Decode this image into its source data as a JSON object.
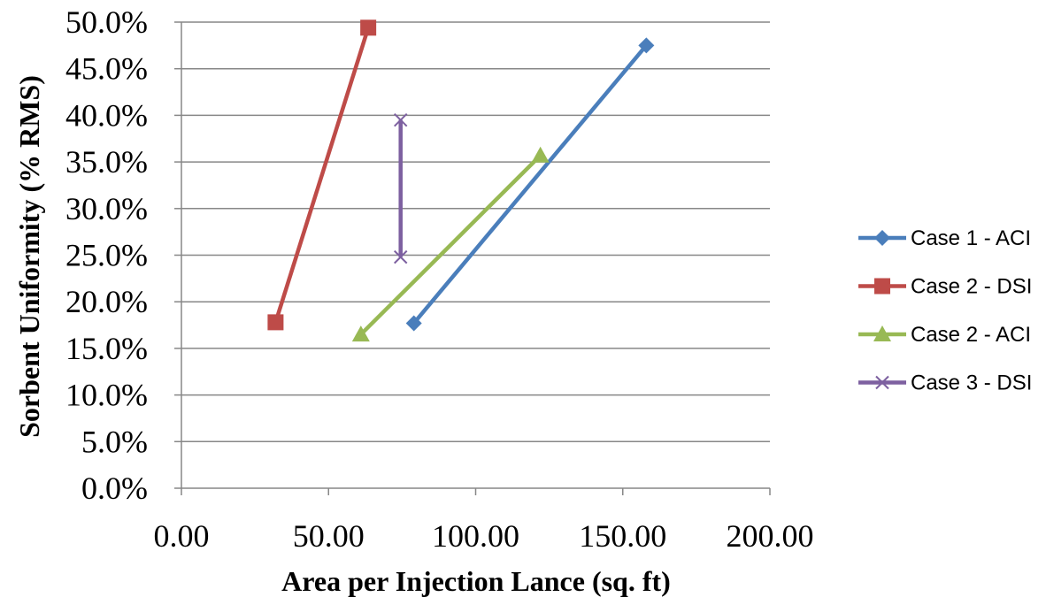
{
  "chart_data": {
    "type": "scatter",
    "xlabel": "Area per Injection Lance (sq. ft)",
    "ylabel": "Sorbent Uniformity (% RMS)",
    "xlim": [
      0,
      200
    ],
    "ylim": [
      0,
      50
    ],
    "x_ticks": [
      0,
      50,
      100,
      150,
      200
    ],
    "y_ticks": [
      0,
      5,
      10,
      15,
      20,
      25,
      30,
      35,
      40,
      45,
      50
    ],
    "x_tick_labels": [
      "0.00",
      "50.00",
      "100.00",
      "150.00",
      "200.00"
    ],
    "y_tick_labels": [
      "0.0%",
      "5.0%",
      "10.0%",
      "15.0%",
      "20.0%",
      "25.0%",
      "30.0%",
      "35.0%",
      "40.0%",
      "45.0%",
      "50.0%"
    ],
    "grid": "horizontal",
    "legend_position": "right",
    "series": [
      {
        "name": "Case 1 - ACI",
        "marker": "diamond",
        "color": "#4a7ebb",
        "x": [
          79,
          158
        ],
        "y": [
          17.7,
          47.5
        ]
      },
      {
        "name": "Case 2 - DSI",
        "marker": "square",
        "color": "#be4b48",
        "x": [
          32,
          63.5
        ],
        "y": [
          17.8,
          49.4
        ]
      },
      {
        "name": "Case 2 - ACI",
        "marker": "triangle",
        "color": "#98b954",
        "x": [
          61,
          122
        ],
        "y": [
          16.5,
          35.7
        ]
      },
      {
        "name": "Case 3 - DSI",
        "marker": "x",
        "color": "#7d60a0",
        "x": [
          74.5,
          74.5
        ],
        "y": [
          39.5,
          24.8
        ]
      }
    ]
  }
}
